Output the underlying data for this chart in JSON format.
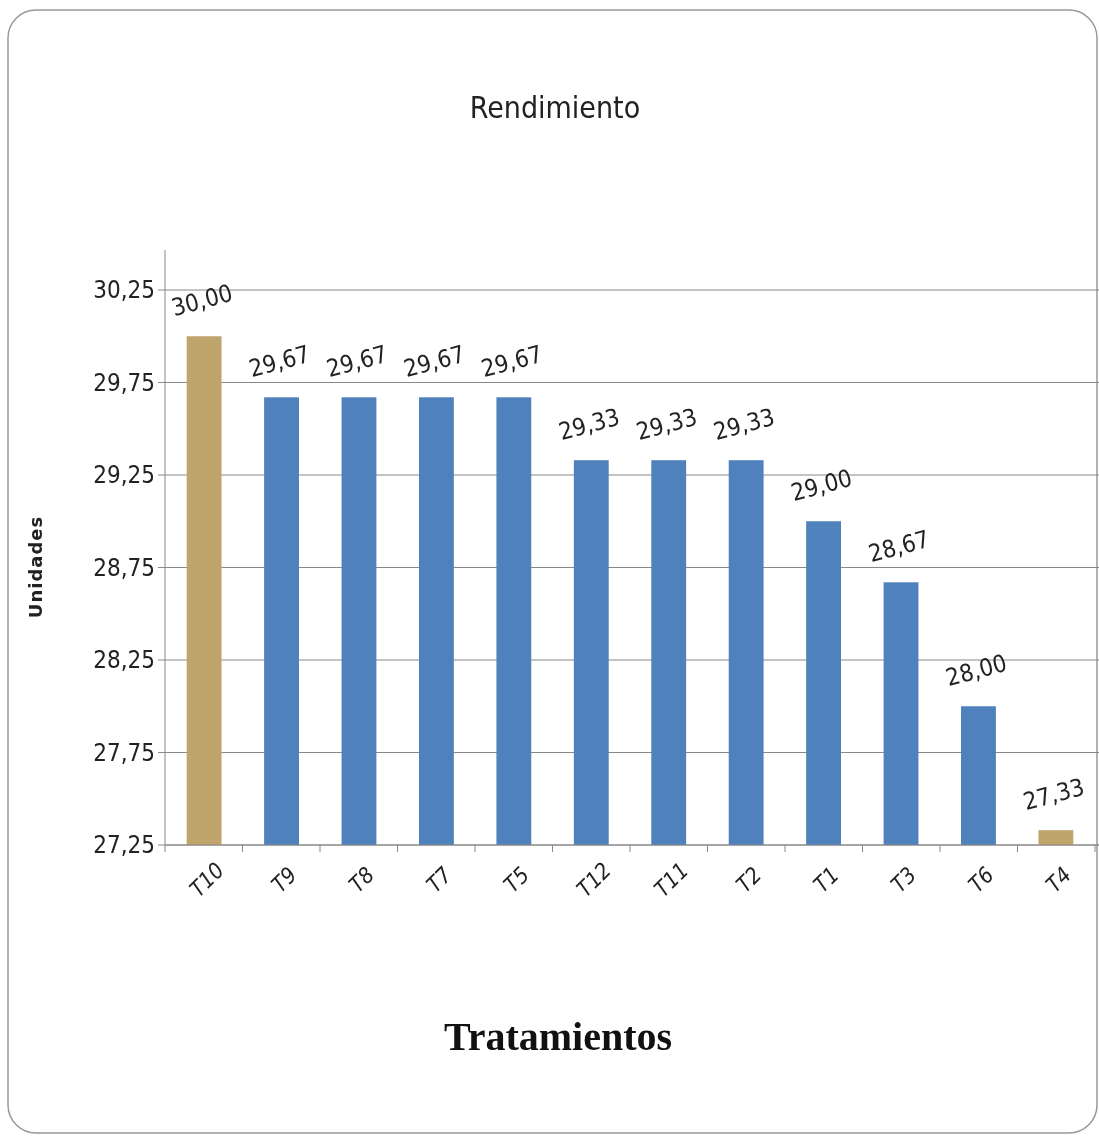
{
  "chart_data": {
    "type": "bar",
    "title": "Rendimiento",
    "xlabel": "Tratamientos",
    "ylabel": "Unidades",
    "categories": [
      "T10",
      "T9",
      "T8",
      "T7",
      "T5",
      "T12",
      "T11",
      "T2",
      "T1",
      "T3",
      "T6",
      "T4"
    ],
    "values": [
      30.0,
      29.67,
      29.67,
      29.67,
      29.67,
      29.33,
      29.33,
      29.33,
      29.0,
      28.67,
      28.0,
      27.33
    ],
    "value_labels": [
      "30,00",
      "29,67",
      "29,67",
      "29,67",
      "29,67",
      "29,33",
      "29,33",
      "29,33",
      "29,00",
      "28,67",
      "28,00",
      "27,33"
    ],
    "colors": [
      "#bfa46c",
      "#4f81bd",
      "#4f81bd",
      "#4f81bd",
      "#4f81bd",
      "#4f81bd",
      "#4f81bd",
      "#4f81bd",
      "#4f81bd",
      "#4f81bd",
      "#4f81bd",
      "#bfa46c"
    ],
    "ylim": [
      27.25,
      30.25
    ],
    "yticks": [
      {
        "value": 27.25,
        "label": "27,25"
      },
      {
        "value": 27.75,
        "label": "27,75"
      },
      {
        "value": 28.25,
        "label": "28,25"
      },
      {
        "value": 28.75,
        "label": "28,75"
      },
      {
        "value": 29.25,
        "label": "29,25"
      },
      {
        "value": 29.75,
        "label": "29,75"
      },
      {
        "value": 30.25,
        "label": "30,25"
      }
    ],
    "grid": "y"
  }
}
